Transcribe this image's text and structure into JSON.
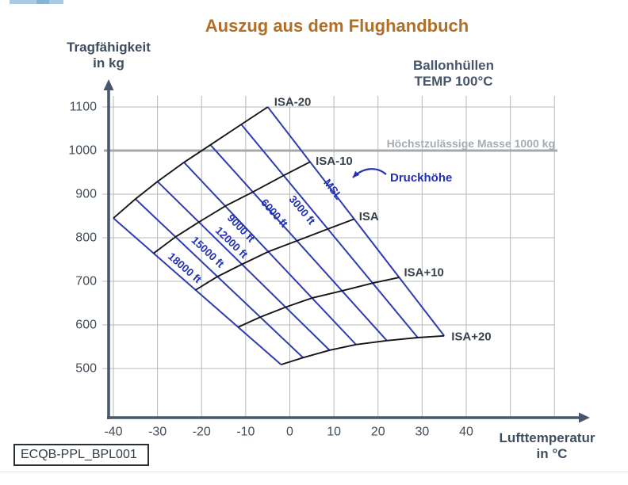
{
  "title": "Auszug aus dem Flughandbuch",
  "y_axis_title": [
    "Tragfähigkeit",
    "in kg"
  ],
  "x_axis_title": [
    "Lufttemperatur",
    "in °C"
  ],
  "condition_label": [
    "Ballonhüllen",
    "TEMP 100°C"
  ],
  "doc_code": "ECQB-PPL_BPL001",
  "chart_data": {
    "type": "line",
    "title": "Auszug aus dem Flughandbuch",
    "xlabel": "Lufttemperatur in °C",
    "ylabel": "Tragfähigkeit in kg",
    "x_ticks": [
      -40,
      -30,
      -20,
      -10,
      0,
      10,
      20,
      30,
      40
    ],
    "x_grid_range": [
      -40,
      60
    ],
    "y_ticks": [
      1100,
      1000,
      900,
      800,
      700,
      600,
      500
    ],
    "xlim": [
      -42,
      68
    ],
    "ylim": [
      460,
      1160
    ],
    "grid": true,
    "limit_line": {
      "value": 1000,
      "label": "Höchstzulässige Masse 1000 kg"
    },
    "annotation": {
      "label": "Druckhöhe",
      "points_to": "MSL"
    },
    "altitude_lines": [
      {
        "label": "MSL",
        "points": [
          [
            -5,
            1100
          ],
          [
            35,
            575
          ]
        ]
      },
      {
        "label": "3000 ft",
        "points": [
          [
            -11,
            1060
          ],
          [
            29,
            571
          ]
        ]
      },
      {
        "label": "6000 ft",
        "points": [
          [
            -18,
            1013
          ],
          [
            22,
            564
          ]
        ]
      },
      {
        "label": "9000 ft",
        "points": [
          [
            -24,
            973
          ],
          [
            15,
            555
          ]
        ]
      },
      {
        "label": "12000 ft",
        "points": [
          [
            -30,
            929
          ],
          [
            9,
            542
          ]
        ]
      },
      {
        "label": "15000 ft",
        "points": [
          [
            -35,
            889
          ],
          [
            3,
            525
          ]
        ]
      },
      {
        "label": "18000 ft",
        "points": [
          [
            -40,
            845
          ],
          [
            -2,
            509
          ]
        ]
      }
    ],
    "isa_lines": [
      {
        "label": "ISA-20",
        "points": [
          [
            -40,
            845
          ],
          [
            -35,
            889
          ],
          [
            -30,
            929
          ],
          [
            -24,
            973
          ],
          [
            -18,
            1013
          ],
          [
            -11,
            1060
          ],
          [
            -5,
            1100
          ]
        ]
      },
      {
        "label": "ISA-10",
        "points": [
          [
            -30.9,
            764
          ],
          [
            -25.9,
            802
          ],
          [
            -20.6,
            836
          ],
          [
            -14.6,
            873
          ],
          [
            -8.4,
            905
          ],
          [
            -1.4,
            943
          ],
          [
            4.6,
            974
          ]
        ]
      },
      {
        "label": "ISA",
        "points": [
          [
            -21.4,
            680
          ],
          [
            -16.4,
            711
          ],
          [
            -10.9,
            739
          ],
          [
            -4.9,
            768
          ],
          [
            1.6,
            793
          ],
          [
            8.6,
            820
          ],
          [
            14.6,
            843
          ]
        ]
      },
      {
        "label": "ISA+10",
        "points": [
          [
            -11.7,
            595
          ],
          [
            -6.7,
            618
          ],
          [
            -0.9,
            641
          ],
          [
            5.1,
            662
          ],
          [
            11.8,
            678
          ],
          [
            18.8,
            696
          ],
          [
            24.8,
            709
          ]
        ]
      },
      {
        "label": "ISA+20",
        "points": [
          [
            -2,
            509
          ],
          [
            3,
            525
          ],
          [
            9,
            542
          ],
          [
            15,
            555
          ],
          [
            22,
            564
          ],
          [
            29,
            571
          ],
          [
            35,
            575
          ]
        ]
      }
    ]
  }
}
